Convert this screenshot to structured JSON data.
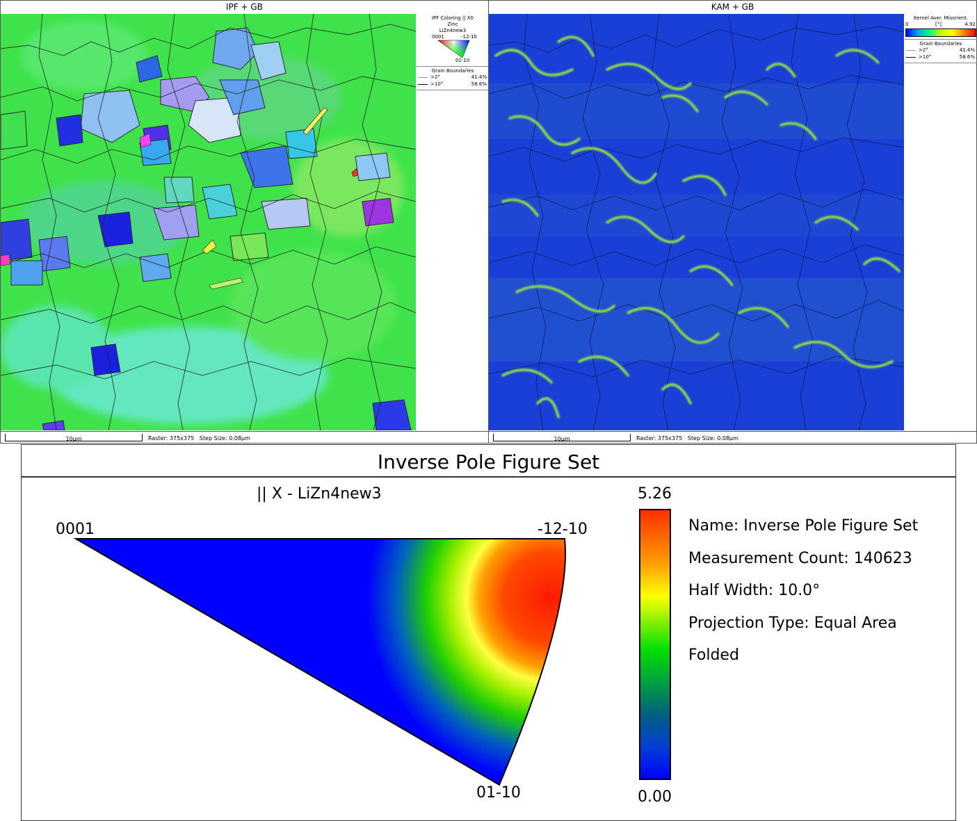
{
  "left_panel": {
    "title": "IPF + GB",
    "legend": {
      "heading": "IPF Coloring || X0",
      "phase": "Zinc",
      "dataset": "LiZn4new3",
      "corner_0001": "0001",
      "corner_m12m10": "-12-10",
      "corner_01m10": "01-10",
      "gb_heading": "Grain Boundaries",
      "gb_rows": [
        {
          "label": ">2°",
          "value": "41.4%"
        },
        {
          "label": ">10°",
          "value": "58.6%"
        }
      ]
    },
    "scalebar": "10µm",
    "raster": "Raster: 375x375   Step Size: 0.08µm"
  },
  "right_panel": {
    "title": "KAM + GB",
    "legend": {
      "heading": "Kernel Aver. Misorient.",
      "min": "0",
      "unit": "[°]",
      "max": "4.92",
      "gb_heading": "Grain Boundaries",
      "gb_rows": [
        {
          "label": ">2°",
          "value": "41.4%"
        },
        {
          "label": ">10°",
          "value": "58.6%"
        }
      ]
    },
    "scalebar": "10µm",
    "raster": "Raster: 375x375   Step Size: 0.08µm"
  },
  "ipf_set": {
    "title": "Inverse Pole Figure Set",
    "subtitle": "|| X - LiZn4new3",
    "corner_0001": "0001",
    "corner_m12m10": "-12-10",
    "corner_01m10": "01-10",
    "scale_max": "5.26",
    "scale_min": "0.00",
    "info": [
      "Name: Inverse Pole Figure Set",
      "Measurement Count: 140623",
      "Half Width: 10.0°",
      "Projection Type: Equal Area",
      "Folded"
    ]
  },
  "colors": {
    "ipf_green": "#33e833",
    "ipf_blue": "#2222ee",
    "kam_blue": "#1a3fd6",
    "kam_green": "#9be83a",
    "high_red": "#ff1a00"
  },
  "icons": [
    "ipf-color-key-icon",
    "kam-color-bar-icon",
    "ipf-triangle-icon",
    "density-color-bar-icon"
  ]
}
